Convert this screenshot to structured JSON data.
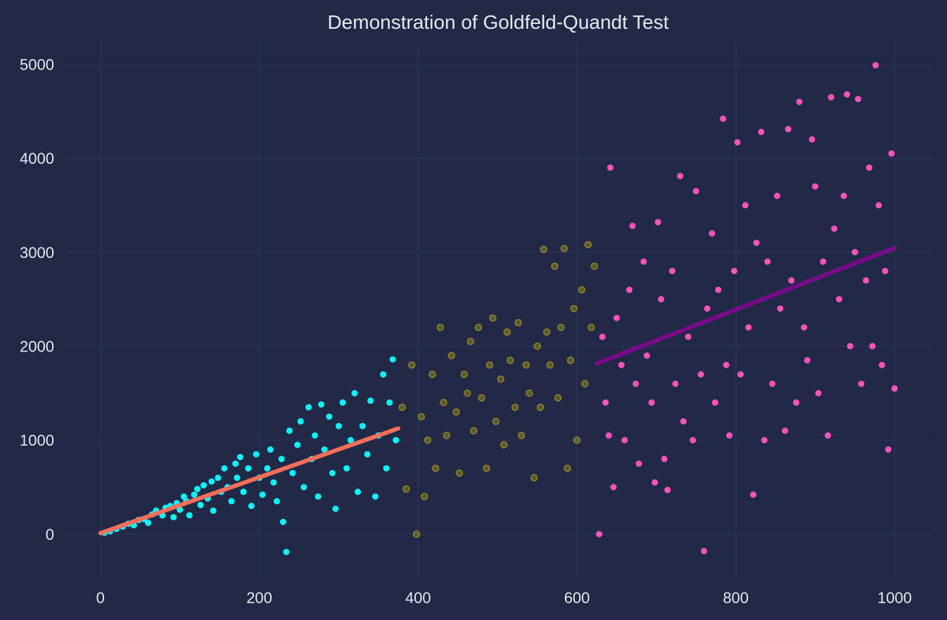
{
  "chart_data": {
    "type": "scatter",
    "title": "Demonstration of Goldfeld-Quandt Test",
    "xlabel": "",
    "ylabel": "",
    "xlim": [
      -45,
      1050
    ],
    "ylim": [
      -450,
      5250
    ],
    "xticks": [
      0,
      200,
      400,
      600,
      800,
      1000
    ],
    "yticks": [
      0,
      1000,
      2000,
      3000,
      4000,
      5000
    ],
    "xtick_labels": [
      "0",
      "200",
      "400",
      "600",
      "800",
      "1000"
    ],
    "ytick_labels": [
      "0",
      "1000",
      "2000",
      "3000",
      "4000",
      "5000"
    ],
    "grid": true,
    "legend": "none",
    "colors": {
      "background": "#212946",
      "grid": "#2a3459",
      "text": "#e6e8ef",
      "low_group": "#08f7fe",
      "middle_group": "#c9b215",
      "high_group": "#fe53bb",
      "low_fit": "#f96e5a",
      "high_fit": "#7a0a8c"
    },
    "series": [
      {
        "group": "low",
        "x_range": [
          1,
          375
        ],
        "slope_estimate": 3.0,
        "points": [
          [
            5,
            15
          ],
          [
            12,
            30
          ],
          [
            20,
            55
          ],
          [
            28,
            80
          ],
          [
            35,
            110
          ],
          [
            42,
            95
          ],
          [
            48,
            150
          ],
          [
            55,
            160
          ],
          [
            60,
            120
          ],
          [
            65,
            210
          ],
          [
            70,
            250
          ],
          [
            78,
            200
          ],
          [
            82,
            280
          ],
          [
            88,
            300
          ],
          [
            92,
            180
          ],
          [
            96,
            330
          ],
          [
            100,
            260
          ],
          [
            105,
            400
          ],
          [
            108,
            350
          ],
          [
            112,
            200
          ],
          [
            118,
            420
          ],
          [
            122,
            480
          ],
          [
            126,
            310
          ],
          [
            130,
            520
          ],
          [
            135,
            380
          ],
          [
            140,
            560
          ],
          [
            142,
            250
          ],
          [
            148,
            600
          ],
          [
            152,
            450
          ],
          [
            156,
            700
          ],
          [
            160,
            500
          ],
          [
            165,
            350
          ],
          [
            170,
            750
          ],
          [
            172,
            600
          ],
          [
            176,
            820
          ],
          [
            180,
            450
          ],
          [
            186,
            700
          ],
          [
            190,
            300
          ],
          [
            196,
            850
          ],
          [
            200,
            600
          ],
          [
            204,
            420
          ],
          [
            210,
            700
          ],
          [
            214,
            900
          ],
          [
            218,
            550
          ],
          [
            222,
            350
          ],
          [
            228,
            800
          ],
          [
            230,
            130
          ],
          [
            234,
            -190
          ],
          [
            238,
            1100
          ],
          [
            242,
            650
          ],
          [
            248,
            950
          ],
          [
            252,
            1200
          ],
          [
            256,
            500
          ],
          [
            262,
            1350
          ],
          [
            266,
            800
          ],
          [
            270,
            1050
          ],
          [
            274,
            400
          ],
          [
            278,
            1380
          ],
          [
            282,
            900
          ],
          [
            288,
            1250
          ],
          [
            292,
            650
          ],
          [
            296,
            270
          ],
          [
            300,
            1150
          ],
          [
            305,
            1400
          ],
          [
            310,
            700
          ],
          [
            315,
            1000
          ],
          [
            320,
            1500
          ],
          [
            324,
            450
          ],
          [
            330,
            1150
          ],
          [
            336,
            850
          ],
          [
            340,
            1420
          ],
          [
            346,
            400
          ],
          [
            350,
            1050
          ],
          [
            356,
            1700
          ],
          [
            360,
            700
          ],
          [
            364,
            1400
          ],
          [
            368,
            1860
          ],
          [
            372,
            1000
          ]
        ]
      },
      {
        "group": "middle",
        "x_range": [
          375,
          625
        ],
        "points": [
          [
            380,
            1350
          ],
          [
            385,
            480
          ],
          [
            392,
            1800
          ],
          [
            398,
            0
          ],
          [
            404,
            1250
          ],
          [
            408,
            400
          ],
          [
            412,
            1000
          ],
          [
            418,
            1700
          ],
          [
            422,
            700
          ],
          [
            428,
            2200
          ],
          [
            432,
            1400
          ],
          [
            436,
            1050
          ],
          [
            442,
            1900
          ],
          [
            448,
            1300
          ],
          [
            452,
            650
          ],
          [
            458,
            1700
          ],
          [
            462,
            1500
          ],
          [
            466,
            2050
          ],
          [
            470,
            1100
          ],
          [
            476,
            2200
          ],
          [
            480,
            1450
          ],
          [
            486,
            700
          ],
          [
            490,
            1800
          ],
          [
            494,
            2300
          ],
          [
            498,
            1200
          ],
          [
            504,
            1650
          ],
          [
            508,
            950
          ],
          [
            512,
            2150
          ],
          [
            516,
            1850
          ],
          [
            522,
            1350
          ],
          [
            526,
            2250
          ],
          [
            530,
            1050
          ],
          [
            536,
            1800
          ],
          [
            540,
            1500
          ],
          [
            546,
            600
          ],
          [
            550,
            2000
          ],
          [
            554,
            1350
          ],
          [
            558,
            3030
          ],
          [
            562,
            2150
          ],
          [
            566,
            1800
          ],
          [
            572,
            2850
          ],
          [
            576,
            1450
          ],
          [
            580,
            2200
          ],
          [
            584,
            3040
          ],
          [
            588,
            700
          ],
          [
            592,
            1850
          ],
          [
            596,
            2400
          ],
          [
            600,
            1000
          ],
          [
            606,
            2600
          ],
          [
            610,
            1600
          ],
          [
            614,
            3080
          ],
          [
            618,
            2200
          ],
          [
            622,
            2850
          ]
        ]
      },
      {
        "group": "high",
        "x_range": [
          625,
          1000
        ],
        "slope_estimate": 3.3,
        "points": [
          [
            628,
            0
          ],
          [
            632,
            2100
          ],
          [
            636,
            1400
          ],
          [
            640,
            1050
          ],
          [
            642,
            3900
          ],
          [
            646,
            500
          ],
          [
            650,
            2300
          ],
          [
            656,
            1800
          ],
          [
            660,
            1000
          ],
          [
            666,
            2600
          ],
          [
            670,
            3280
          ],
          [
            674,
            1600
          ],
          [
            678,
            750
          ],
          [
            684,
            2900
          ],
          [
            688,
            1900
          ],
          [
            694,
            1400
          ],
          [
            698,
            550
          ],
          [
            702,
            3320
          ],
          [
            706,
            2500
          ],
          [
            710,
            800
          ],
          [
            714,
            470
          ],
          [
            720,
            2800
          ],
          [
            724,
            1600
          ],
          [
            730,
            3810
          ],
          [
            734,
            1200
          ],
          [
            740,
            2100
          ],
          [
            746,
            1000
          ],
          [
            750,
            3650
          ],
          [
            756,
            1700
          ],
          [
            760,
            -180
          ],
          [
            764,
            2400
          ],
          [
            770,
            3200
          ],
          [
            774,
            1400
          ],
          [
            778,
            2600
          ],
          [
            784,
            4420
          ],
          [
            788,
            1800
          ],
          [
            792,
            1050
          ],
          [
            798,
            2800
          ],
          [
            802,
            4170
          ],
          [
            806,
            1700
          ],
          [
            812,
            3500
          ],
          [
            816,
            2200
          ],
          [
            822,
            420
          ],
          [
            826,
            3100
          ],
          [
            832,
            4280
          ],
          [
            836,
            1000
          ],
          [
            840,
            2900
          ],
          [
            846,
            1600
          ],
          [
            852,
            3600
          ],
          [
            856,
            2400
          ],
          [
            862,
            1100
          ],
          [
            866,
            4310
          ],
          [
            870,
            2700
          ],
          [
            876,
            1400
          ],
          [
            880,
            4600
          ],
          [
            886,
            2200
          ],
          [
            890,
            1850
          ],
          [
            896,
            4200
          ],
          [
            900,
            3700
          ],
          [
            904,
            1500
          ],
          [
            910,
            2900
          ],
          [
            916,
            1050
          ],
          [
            920,
            4650
          ],
          [
            924,
            3250
          ],
          [
            930,
            2500
          ],
          [
            936,
            3600
          ],
          [
            940,
            4680
          ],
          [
            944,
            2000
          ],
          [
            950,
            3000
          ],
          [
            954,
            4630
          ],
          [
            958,
            1600
          ],
          [
            964,
            2700
          ],
          [
            968,
            3900
          ],
          [
            972,
            2000
          ],
          [
            976,
            4990
          ],
          [
            980,
            3500
          ],
          [
            984,
            1800
          ],
          [
            988,
            2800
          ],
          [
            992,
            900
          ],
          [
            996,
            4050
          ],
          [
            1000,
            1550
          ]
        ]
      }
    ],
    "fit_lines": [
      {
        "group": "low",
        "x": [
          0,
          375
        ],
        "y": [
          10,
          1125
        ]
      },
      {
        "group": "high",
        "x": [
          625,
          1000
        ],
        "y": [
          1815,
          3045
        ]
      }
    ]
  }
}
